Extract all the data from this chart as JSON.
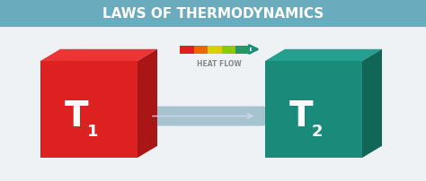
{
  "title": "LAWS OF THERMODYNAMICS",
  "title_bg_color": "#6aacbe",
  "title_text_color": "#ffffff",
  "bg_color": "#eef2f5",
  "cube1_color": "#dd2020",
  "cube1_shadow_color": "#aa1515",
  "cube1_top_color": "#ee3535",
  "cube2_color": "#1a8a7a",
  "cube2_shadow_color": "#126658",
  "cube2_top_color": "#25a090",
  "label_color": "#ffffff",
  "connector_color": "#8ab0c0",
  "heat_flow_label": "HEAT FLOW",
  "heat_flow_label_color": "#888888",
  "arrow_colors": [
    "#dd2020",
    "#ee6600",
    "#ddcc00",
    "#88cc00",
    "#229966"
  ],
  "fig_width": 4.74,
  "fig_height": 2.02,
  "dpi": 100
}
